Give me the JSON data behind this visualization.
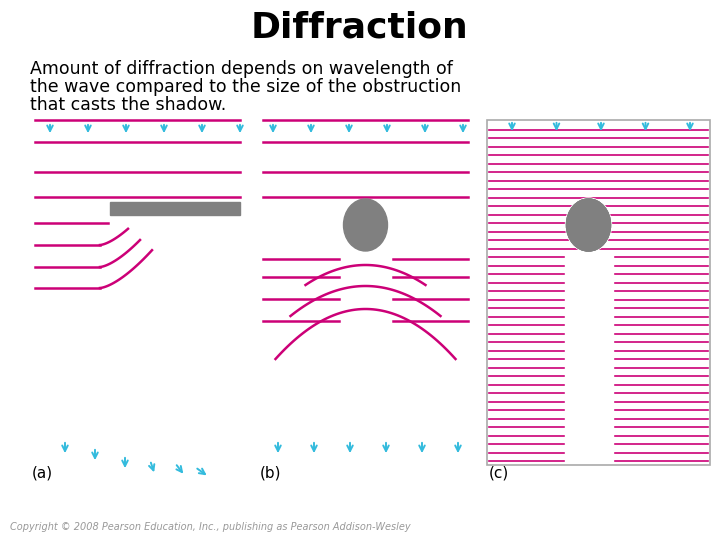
{
  "title": "Diffraction",
  "subtitle_line1": "Amount of diffraction depends on wavelength of",
  "subtitle_line2": "the wave compared to the size of the obstruction",
  "subtitle_line3": "that casts the shadow.",
  "copyright": "Copyright © 2008 Pearson Education, Inc., publishing as Pearson Addison-Wesley",
  "wave_color": "#CC0077",
  "arrow_color": "#33BBDD",
  "obstacle_color": "#808080",
  "bg_color": "#FFFFFF",
  "label_a": "(a)",
  "label_b": "(b)",
  "label_c": "(c)"
}
